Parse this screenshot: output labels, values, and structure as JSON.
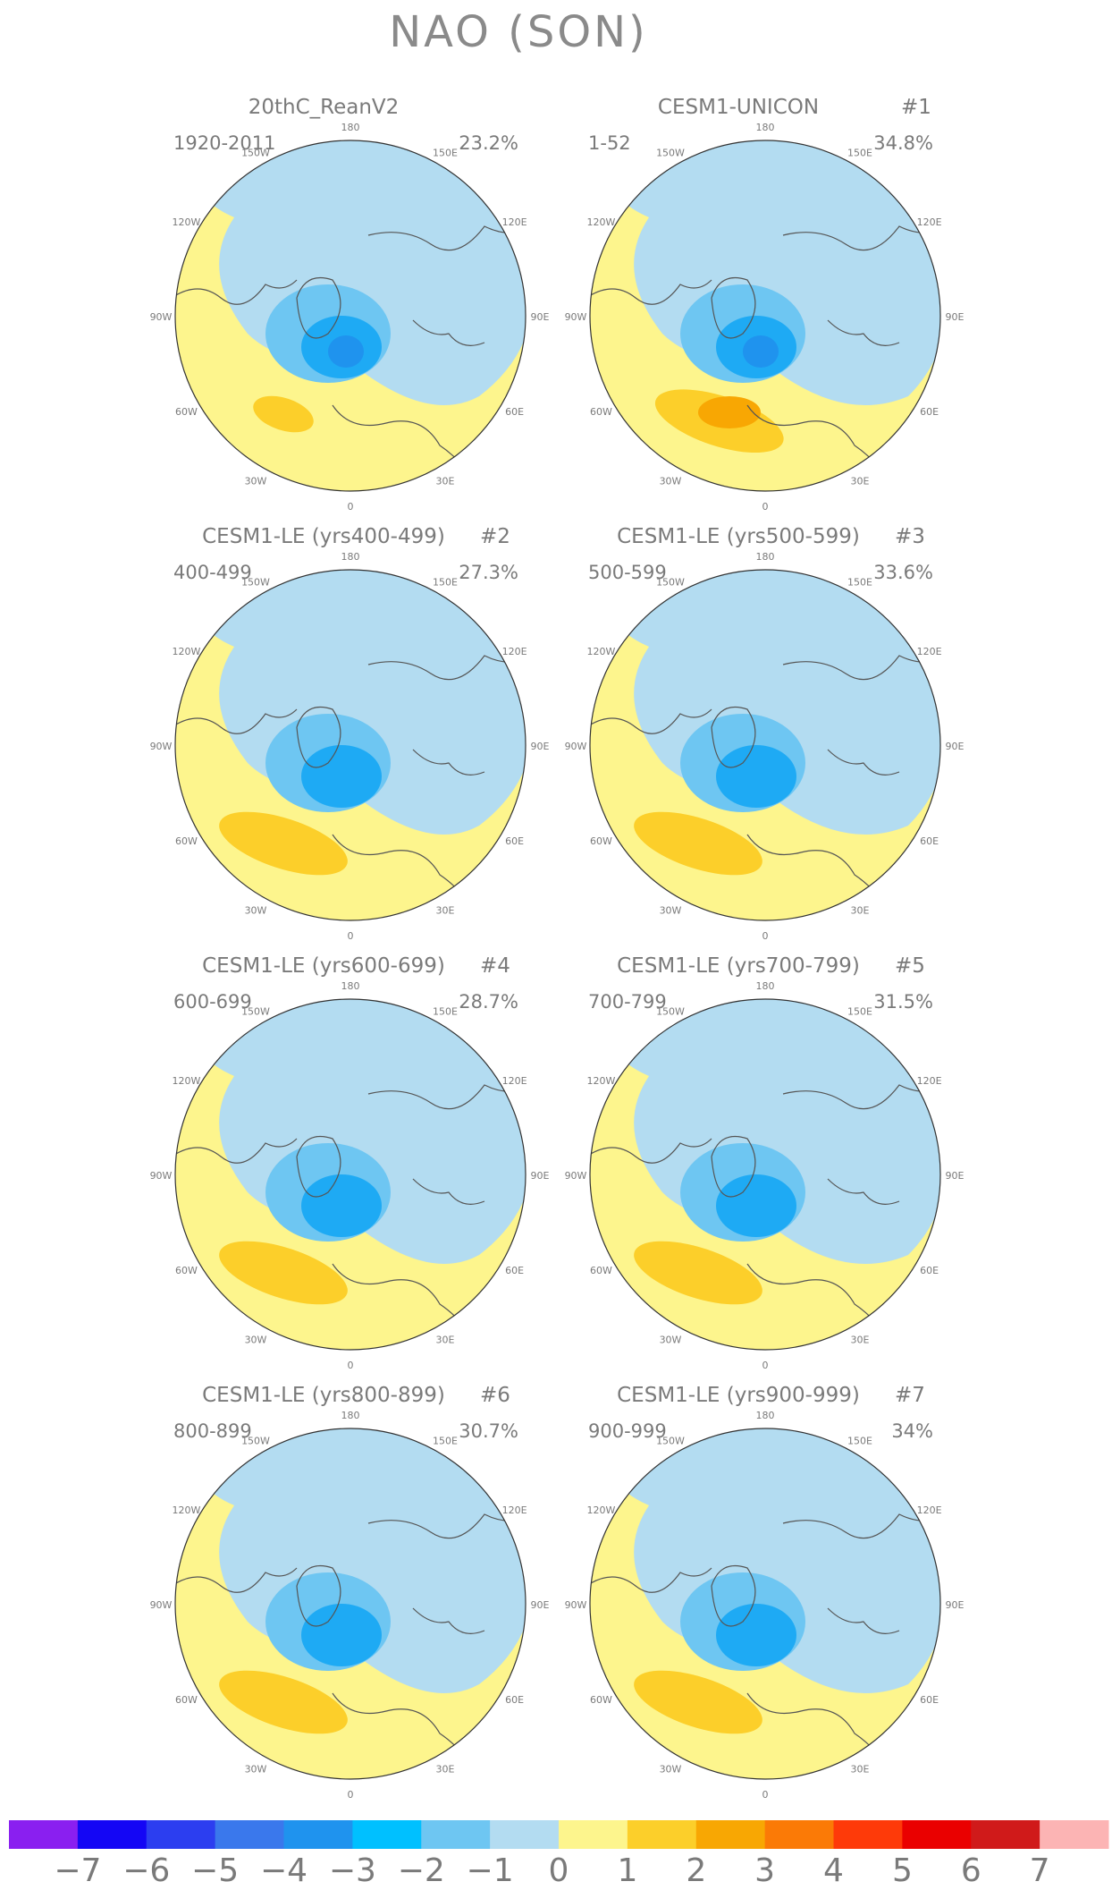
{
  "title": "NAO (SON)",
  "colors": {
    "yellow": "#fdf58d",
    "light_blue": "#b3dcf1",
    "blue_2": "#6ec6f2",
    "blue_3": "#1eaaf4",
    "blue_4": "#1f93ee",
    "orange_2": "#fccf2a",
    "orange_3": "#f8a703",
    "coast": "#555555",
    "text": "#7a7a7a"
  },
  "longitude_labels": [
    "180",
    "150E",
    "120E",
    "90E",
    "60E",
    "30E",
    "0",
    "30W",
    "60W",
    "90W",
    "120W",
    "150W"
  ],
  "panels": [
    {
      "title": "20thC_ReanV2",
      "member": "",
      "years": "1920-2011",
      "variance": "23.2%"
    },
    {
      "title": "CESM1-UNICON",
      "member": "#1",
      "years": "1-52",
      "variance": "34.8%"
    },
    {
      "title": "CESM1-LE (yrs400-499)",
      "member": "#2",
      "years": "400-499",
      "variance": "27.3%"
    },
    {
      "title": "CESM1-LE (yrs500-599)",
      "member": "#3",
      "years": "500-599",
      "variance": "33.6%"
    },
    {
      "title": "CESM1-LE (yrs600-699)",
      "member": "#4",
      "years": "600-699",
      "variance": "28.7%"
    },
    {
      "title": "CESM1-LE (yrs700-799)",
      "member": "#5",
      "years": "700-799",
      "variance": "31.5%"
    },
    {
      "title": "CESM1-LE (yrs800-899)",
      "member": "#6",
      "years": "800-899",
      "variance": "30.7%"
    },
    {
      "title": "CESM1-LE (yrs900-999)",
      "member": "#7",
      "years": "900-999",
      "variance": "34%"
    }
  ],
  "colorbar": {
    "colors": [
      "#8a1ff0",
      "#1406f5",
      "#2c3ef0",
      "#3a78ec",
      "#1f93ee",
      "#00c0ff",
      "#6ec6f2",
      "#b3dcf1",
      "#fdf58d",
      "#fccf2a",
      "#f8a703",
      "#fb7a06",
      "#fe3a09",
      "#ea0000",
      "#d01a1a",
      "#fcb4b4"
    ],
    "labels": [
      "−7",
      "−6",
      "−5",
      "−4",
      "−3",
      "−2",
      "−1",
      "0",
      "1",
      "2",
      "3",
      "4",
      "5",
      "6",
      "7"
    ]
  }
}
